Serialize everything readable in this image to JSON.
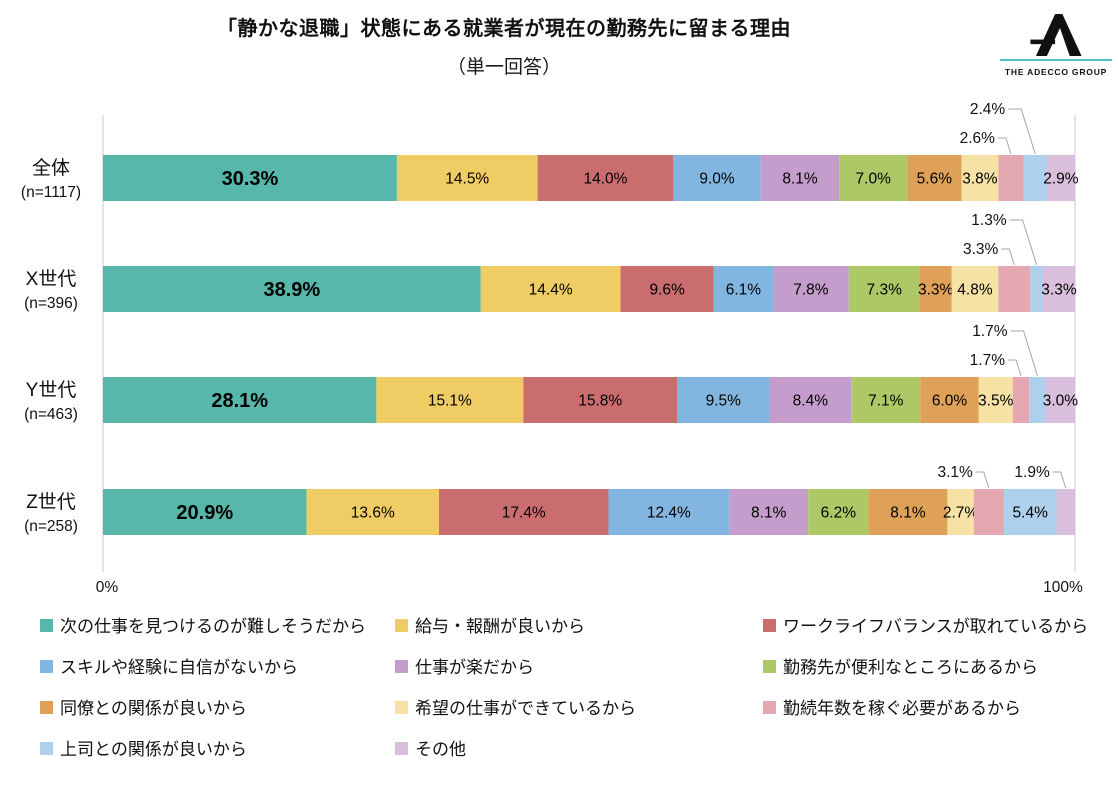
{
  "title": "「静かな退職」状態にある就業者が現在の勤務先に留まる理由",
  "subtitle": "（単一回答）",
  "logo": {
    "brand": "THE ADECCO GROUP",
    "accent_color": "#53c3bd"
  },
  "chart_data": {
    "type": "bar",
    "stacked": true,
    "orientation": "horizontal",
    "unit": "%",
    "xlim": [
      0,
      100
    ],
    "xtick_labels": [
      "0%",
      "100%"
    ],
    "grid": "vertical-edges-only",
    "legend_position": "bottom",
    "rows": [
      {
        "label": "全体",
        "n_label": "(n=1117)"
      },
      {
        "label": "X世代",
        "n_label": "(n=396)"
      },
      {
        "label": "Y世代",
        "n_label": "(n=463)"
      },
      {
        "label": "Z世代",
        "n_label": "(n=258)"
      }
    ],
    "series": [
      {
        "name": "次の仕事を見つけるのが難しそうだから",
        "color": "#57b7aa",
        "values": [
          30.3,
          38.9,
          28.1,
          20.9
        ]
      },
      {
        "name": "給与・報酬が良いから",
        "color": "#f0cd64",
        "values": [
          14.5,
          14.4,
          15.1,
          13.6
        ]
      },
      {
        "name": "ワークライフバランスが取れているから",
        "color": "#ca6d6f",
        "values": [
          14.0,
          9.6,
          15.8,
          17.4
        ]
      },
      {
        "name": "スキルや経験に自信がないから",
        "color": "#82b6e0",
        "values": [
          9.0,
          6.1,
          9.5,
          12.4
        ]
      },
      {
        "name": "仕事が楽だから",
        "color": "#c59dcc",
        "values": [
          8.1,
          7.8,
          8.4,
          8.1
        ]
      },
      {
        "name": "勤務先が便利なところにあるから",
        "color": "#adc867",
        "values": [
          7.0,
          7.3,
          7.1,
          6.2
        ]
      },
      {
        "name": "同僚との関係が良いから",
        "color": "#dfa057",
        "values": [
          5.6,
          3.3,
          6.0,
          8.1
        ]
      },
      {
        "name": "希望の仕事ができているから",
        "color": "#f6e2a4",
        "values": [
          3.8,
          4.8,
          3.5,
          2.7
        ]
      },
      {
        "name": "勤続年数を稼ぐ必要があるから",
        "color": "#e3a8b0",
        "values": [
          2.6,
          3.3,
          1.7,
          3.1
        ]
      },
      {
        "name": "上司との関係が良いから",
        "color": "#aed0ec",
        "values": [
          2.4,
          1.3,
          1.7,
          5.4
        ]
      },
      {
        "name": "その他",
        "color": "#dabfdc",
        "values": [
          2.9,
          3.3,
          3.0,
          1.9
        ]
      }
    ],
    "callouts": [
      {
        "row": 0,
        "series": 8,
        "tier": "low"
      },
      {
        "row": 0,
        "series": 9,
        "tier": "high"
      },
      {
        "row": 1,
        "series": 8,
        "tier": "low"
      },
      {
        "row": 1,
        "series": 9,
        "tier": "high"
      },
      {
        "row": 2,
        "series": 8,
        "tier": "low"
      },
      {
        "row": 2,
        "series": 9,
        "tier": "high"
      },
      {
        "row": 3,
        "series": 8,
        "tier": "low"
      },
      {
        "row": 3,
        "series": 10,
        "tier": "low"
      }
    ]
  }
}
